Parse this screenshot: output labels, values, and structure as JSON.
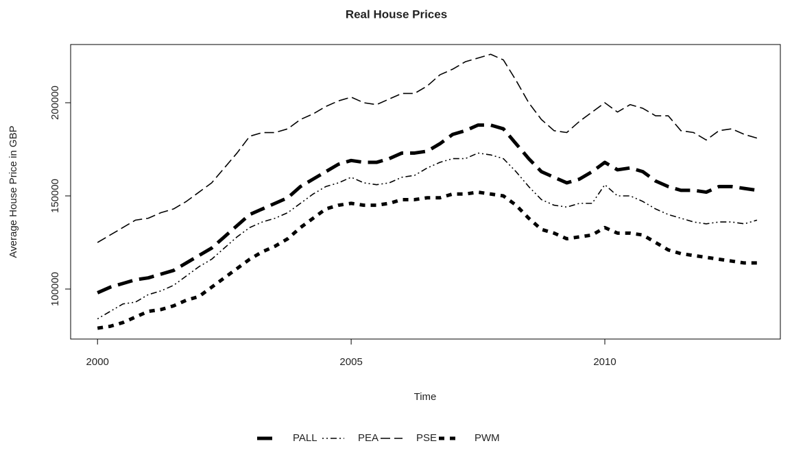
{
  "chart_data": {
    "type": "line",
    "title": "Real House Prices",
    "x_label": "Time",
    "y_label": "Average House Price in GBP",
    "x": [
      2000,
      2000.25,
      2000.5,
      2000.75,
      2001,
      2001.25,
      2001.5,
      2001.75,
      2002,
      2002.25,
      2002.5,
      2002.75,
      2003,
      2003.25,
      2003.5,
      2003.75,
      2004,
      2004.25,
      2004.5,
      2004.75,
      2005,
      2005.25,
      2005.5,
      2005.75,
      2006,
      2006.25,
      2006.5,
      2006.75,
      2007,
      2007.25,
      2007.5,
      2007.75,
      2008,
      2008.25,
      2008.5,
      2008.75,
      2009,
      2009.25,
      2009.5,
      2009.75,
      2010,
      2010.25,
      2010.5,
      2010.75,
      2011,
      2011.25,
      2011.5,
      2011.75,
      2012,
      2012.25,
      2012.5,
      2012.75,
      2013
    ],
    "series": [
      {
        "name": "PALL",
        "color": "#000000",
        "values": [
          98000,
          101000,
          103000,
          105000,
          106000,
          108000,
          110000,
          114000,
          118000,
          122000,
          128000,
          134000,
          140000,
          143000,
          146000,
          149000,
          155000,
          159000,
          163000,
          167000,
          169000,
          168000,
          168000,
          170000,
          173000,
          173000,
          174000,
          178000,
          183000,
          185000,
          188000,
          188000,
          186000,
          178000,
          170000,
          163000,
          160000,
          157000,
          159000,
          163000,
          168000,
          164000,
          165000,
          163000,
          158000,
          155000,
          153000,
          153000,
          152000,
          155000,
          155000,
          154000,
          153000
        ]
      },
      {
        "name": "PEA",
        "color": "#000000",
        "values": [
          84000,
          88000,
          92000,
          93000,
          97000,
          99000,
          102000,
          107000,
          112000,
          116000,
          122000,
          128000,
          133000,
          136000,
          138000,
          141000,
          146000,
          151000,
          155000,
          157000,
          160000,
          157000,
          156000,
          157000,
          160000,
          161000,
          165000,
          168000,
          170000,
          170000,
          173000,
          172000,
          170000,
          163000,
          155000,
          148000,
          145000,
          144000,
          146000,
          146000,
          156000,
          150000,
          150000,
          147000,
          143000,
          140000,
          138000,
          136000,
          135000,
          136000,
          136000,
          135000,
          137000
        ]
      },
      {
        "name": "PSE",
        "color": "#000000",
        "values": [
          125000,
          129000,
          133000,
          137000,
          138000,
          141000,
          143000,
          147000,
          152000,
          157000,
          165000,
          173000,
          182000,
          184000,
          184000,
          186000,
          191000,
          194000,
          198000,
          201000,
          203000,
          200000,
          199000,
          202000,
          205000,
          205000,
          209000,
          215000,
          218000,
          222000,
          224000,
          226000,
          223000,
          212000,
          200000,
          191000,
          185000,
          184000,
          190000,
          195000,
          200000,
          195000,
          199000,
          197000,
          193000,
          193000,
          185000,
          184000,
          180000,
          185000,
          186000,
          183000,
          181000
        ]
      },
      {
        "name": "PWM",
        "color": "#000000",
        "values": [
          79000,
          80000,
          82000,
          85000,
          88000,
          89000,
          91000,
          94000,
          96000,
          101000,
          106000,
          111000,
          116000,
          120000,
          123000,
          127000,
          133000,
          138000,
          143000,
          145000,
          146000,
          145000,
          145000,
          146000,
          148000,
          148000,
          149000,
          149000,
          151000,
          151000,
          152000,
          151000,
          150000,
          145000,
          138000,
          132000,
          130000,
          127000,
          128000,
          129000,
          133000,
          130000,
          130000,
          129000,
          125000,
          121000,
          119000,
          118000,
          117000,
          116000,
          115000,
          114000,
          114000
        ]
      }
    ],
    "xlim": [
      1999.47,
      2013.46
    ],
    "xticks": [
      2000,
      2005,
      2010
    ],
    "ylim": [
      73160,
      231250
    ],
    "yticks": [
      100000,
      150000,
      200000
    ],
    "grid": false,
    "legend": "bottom"
  }
}
